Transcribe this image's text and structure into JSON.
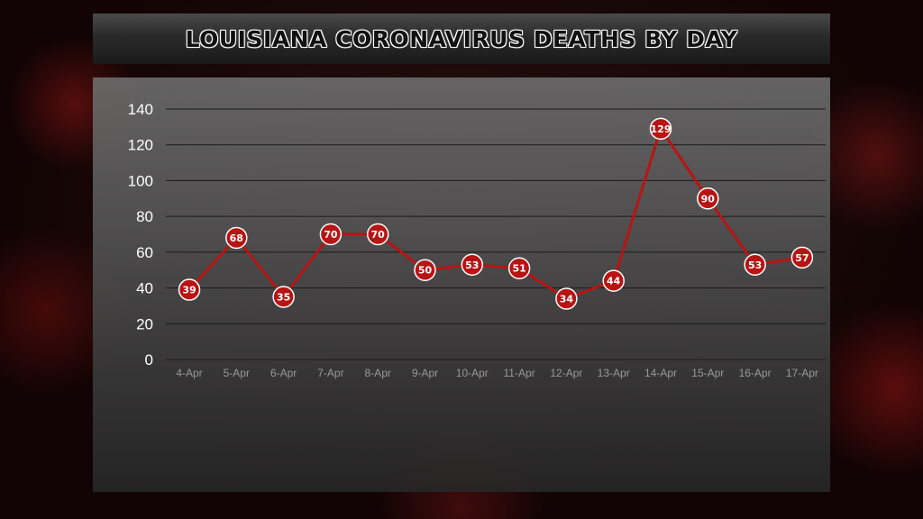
{
  "title": "LOUISIANA CORONAVIRUS DEATHS BY DAY",
  "colors": {
    "line": "#b81414",
    "marker": "#b81414",
    "marker_outline": "#ffffff",
    "gridline": "#1a1a1a"
  },
  "chart_data": {
    "type": "line",
    "title": "LOUISIANA CORONAVIRUS DEATHS BY DAY",
    "xlabel": "",
    "ylabel": "",
    "categories": [
      "4-Apr",
      "5-Apr",
      "6-Apr",
      "7-Apr",
      "8-Apr",
      "9-Apr",
      "10-Apr",
      "11-Apr",
      "12-Apr",
      "13-Apr",
      "14-Apr",
      "15-Apr",
      "16-Apr",
      "17-Apr"
    ],
    "values": [
      39,
      68,
      35,
      70,
      70,
      50,
      53,
      51,
      34,
      44,
      129,
      90,
      53,
      57
    ],
    "ylim": [
      0,
      140
    ],
    "yticks": [
      0,
      20,
      40,
      60,
      80,
      100,
      120,
      140
    ],
    "grid": true,
    "data_labels": true,
    "legend": "none"
  }
}
